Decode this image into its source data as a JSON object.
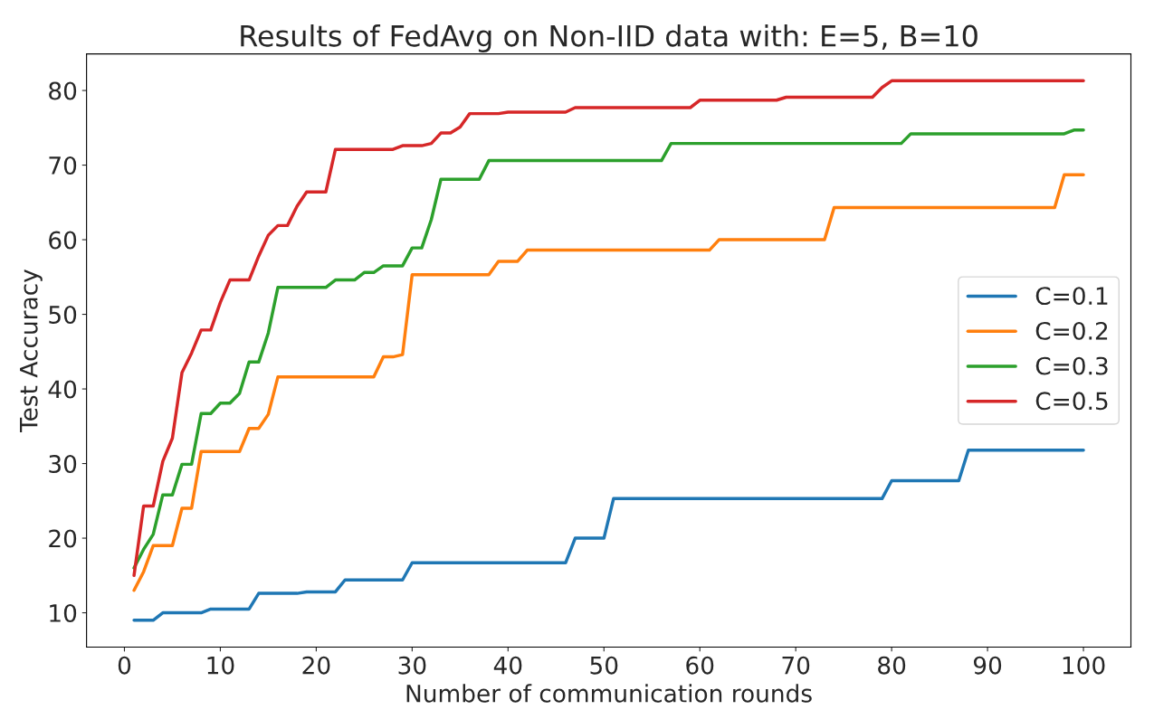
{
  "chart_data": {
    "type": "line",
    "title": "Results of FedAvg on Non-IID data with: E=5, B=10",
    "xlabel": "Number of communication rounds",
    "ylabel": "Test Accuracy",
    "xlim": [
      -3.95,
      104.95
    ],
    "ylim": [
      5.4,
      84.9
    ],
    "xticks": [
      0,
      10,
      20,
      30,
      40,
      50,
      60,
      70,
      80,
      90,
      100
    ],
    "yticks": [
      10,
      20,
      30,
      40,
      50,
      60,
      70,
      80
    ],
    "legend": "center right",
    "grid": false,
    "line_style": "solid",
    "marker": "none",
    "series": [
      {
        "name": "C=0.1",
        "color": "#1f77b4",
        "x": [
          1,
          3,
          4,
          8,
          9,
          13,
          14,
          18,
          19,
          22,
          23,
          29,
          30,
          46,
          47,
          50,
          51,
          79,
          80,
          87,
          88,
          100
        ],
        "values": [
          9,
          9,
          10,
          10,
          10.5,
          10.5,
          12.6,
          12.6,
          12.8,
          12.8,
          14.4,
          14.4,
          16.7,
          16.7,
          20,
          20,
          25.3,
          25.3,
          27.7,
          27.7,
          31.8,
          31.8
        ]
      },
      {
        "name": "C=0.2",
        "color": "#ff7f0e",
        "x": [
          1,
          2,
          3,
          5,
          6,
          7,
          8,
          12,
          13,
          14,
          15,
          16,
          26,
          27,
          28,
          29,
          30,
          38,
          39,
          41,
          42,
          61,
          62,
          73,
          74,
          97,
          98,
          100
        ],
        "values": [
          13,
          15.5,
          19,
          19,
          24,
          24,
          31.6,
          31.6,
          34.7,
          34.7,
          36.6,
          41.6,
          41.6,
          44.3,
          44.3,
          44.6,
          55.3,
          55.3,
          57.1,
          57.1,
          58.6,
          58.6,
          60,
          60,
          64.3,
          64.3,
          68.7,
          68.7
        ]
      },
      {
        "name": "C=0.3",
        "color": "#2ca02c",
        "x": [
          1,
          2,
          3,
          4,
          5,
          6,
          7,
          8,
          9,
          10,
          11,
          12,
          13,
          14,
          15,
          16,
          21,
          22,
          24,
          25,
          26,
          27,
          29,
          30,
          31,
          32,
          33,
          37,
          38,
          56,
          57,
          81,
          82,
          98,
          99,
          100
        ],
        "values": [
          16,
          18.5,
          20.5,
          25.8,
          25.8,
          29.9,
          29.9,
          36.7,
          36.7,
          38.1,
          38.1,
          39.4,
          43.6,
          43.6,
          47.5,
          53.6,
          53.6,
          54.6,
          54.6,
          55.6,
          55.6,
          56.5,
          56.5,
          58.9,
          58.9,
          62.7,
          68.1,
          68.1,
          70.6,
          70.6,
          72.9,
          72.9,
          74.2,
          74.2,
          74.7,
          74.7
        ]
      },
      {
        "name": "C=0.5",
        "color": "#d62728",
        "x": [
          1,
          2,
          3,
          4,
          5,
          6,
          7,
          8,
          9,
          10,
          11,
          13,
          14,
          15,
          16,
          17,
          18,
          19,
          21,
          22,
          28,
          29,
          31,
          32,
          33,
          34,
          35,
          36,
          39,
          40,
          46,
          47,
          59,
          60,
          68,
          69,
          78,
          79,
          80,
          100
        ],
        "values": [
          15,
          24.3,
          24.3,
          30.3,
          33.4,
          42.2,
          44.8,
          47.9,
          47.9,
          51.6,
          54.6,
          54.6,
          57.8,
          60.6,
          61.9,
          61.9,
          64.5,
          66.4,
          66.4,
          72.1,
          72.1,
          72.6,
          72.6,
          72.9,
          74.3,
          74.3,
          75.1,
          76.9,
          76.9,
          77.1,
          77.1,
          77.7,
          77.7,
          78.7,
          78.7,
          79.1,
          79.1,
          80.4,
          81.3,
          81.3
        ]
      }
    ]
  }
}
